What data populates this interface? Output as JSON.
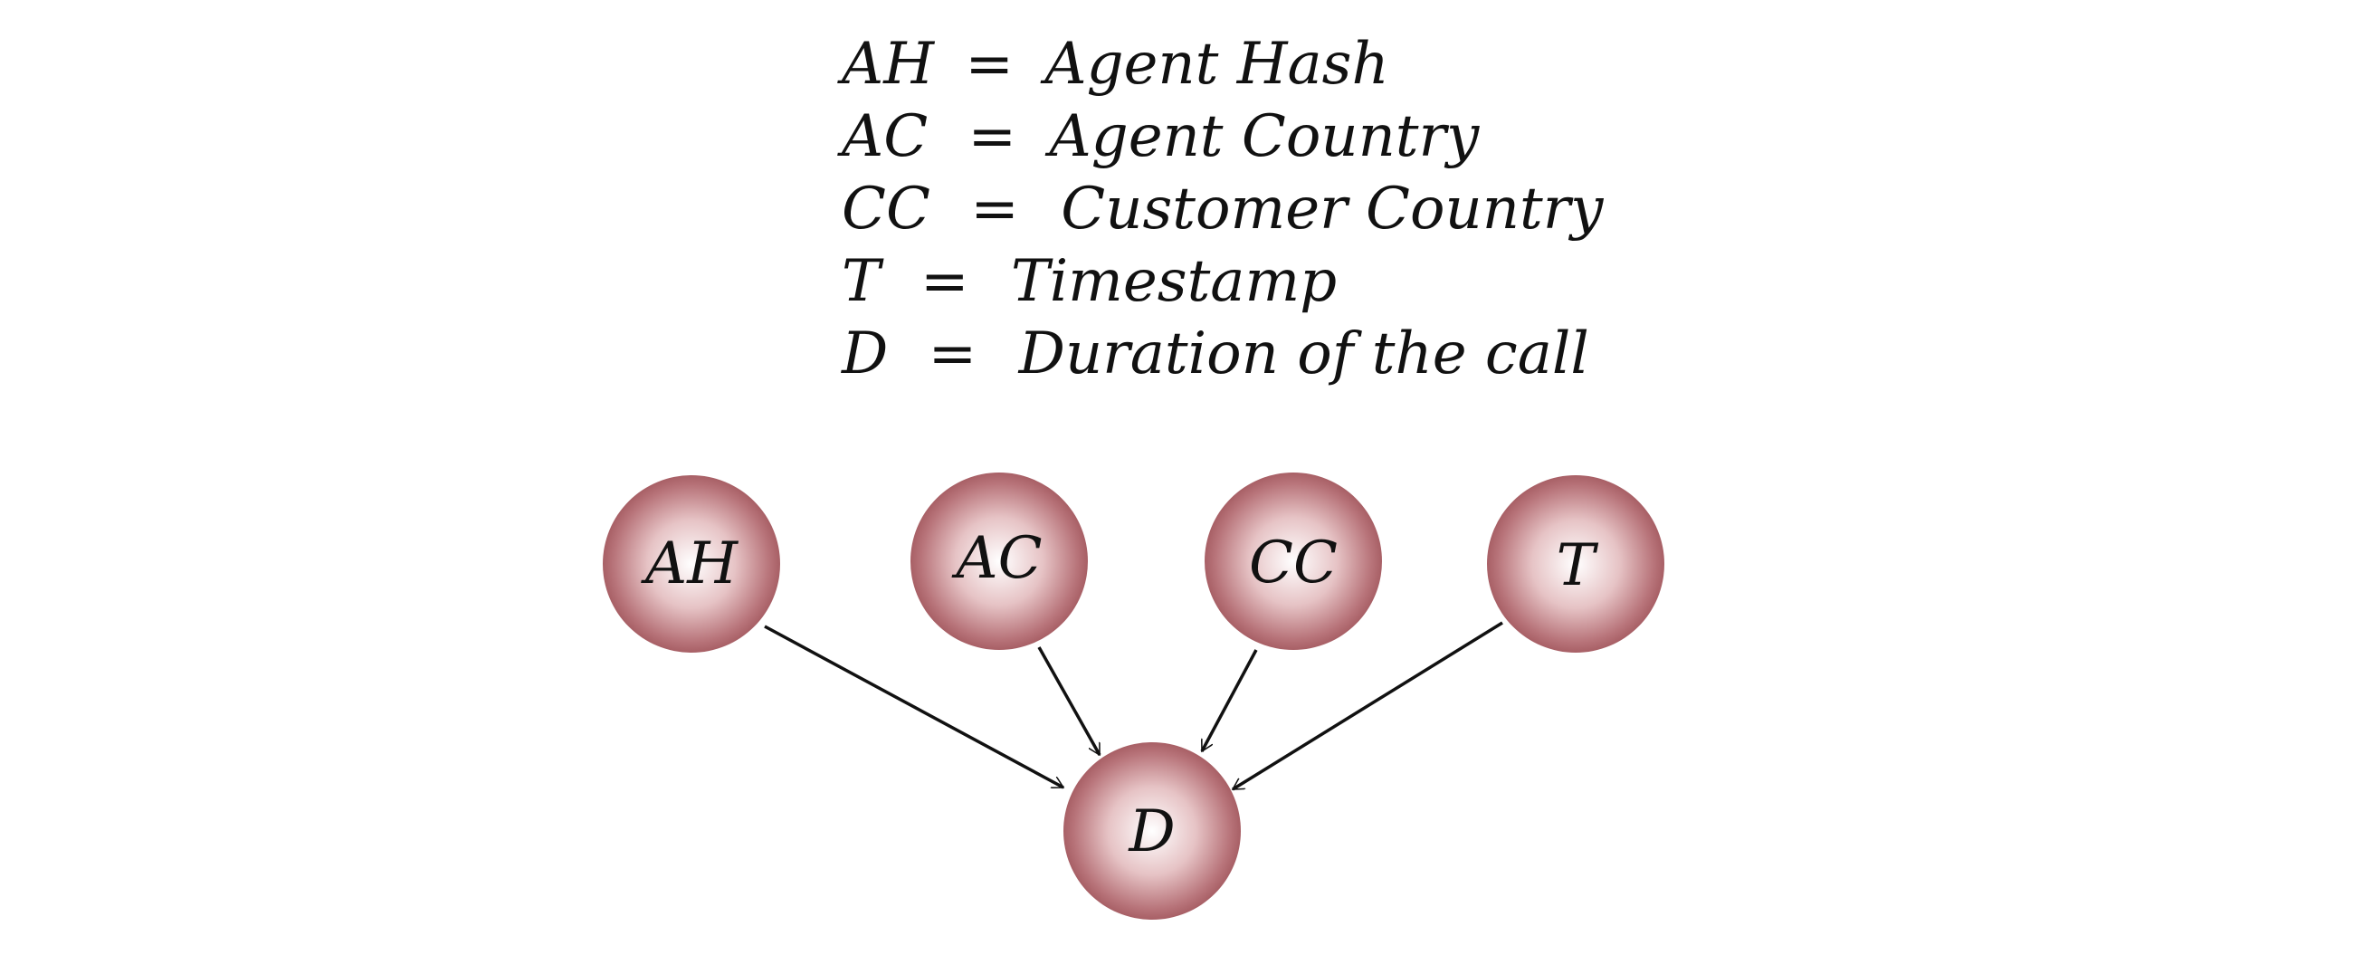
{
  "legend": [
    {
      "abbr": "AH",
      "eq": "=",
      "meaning": "Agent Hash"
    },
    {
      "abbr": "AC",
      "eq": "=",
      "meaning": "Agent Country"
    },
    {
      "abbr": "CC",
      "eq": "=",
      "meaning": "Customer Country"
    },
    {
      "abbr": "T",
      "eq": "=",
      "meaning": "Timestamp"
    },
    {
      "abbr": "D",
      "eq": "=",
      "meaning": "Duration of the call"
    }
  ],
  "nodes": [
    {
      "id": "AH",
      "label": "AH"
    },
    {
      "id": "AC",
      "label": "AC"
    },
    {
      "id": "CC",
      "label": "CC"
    },
    {
      "id": "T",
      "label": "T"
    },
    {
      "id": "D",
      "label": "D"
    }
  ],
  "edges": [
    {
      "from": "AH",
      "to": "D"
    },
    {
      "from": "AC",
      "to": "D"
    },
    {
      "from": "CC",
      "to": "D"
    },
    {
      "from": "T",
      "to": "D"
    }
  ],
  "colors": {
    "node_light": "#ffffff",
    "node_mid": "#d9a9ac",
    "node_dark": "#9a4e54",
    "line": "#111111"
  }
}
